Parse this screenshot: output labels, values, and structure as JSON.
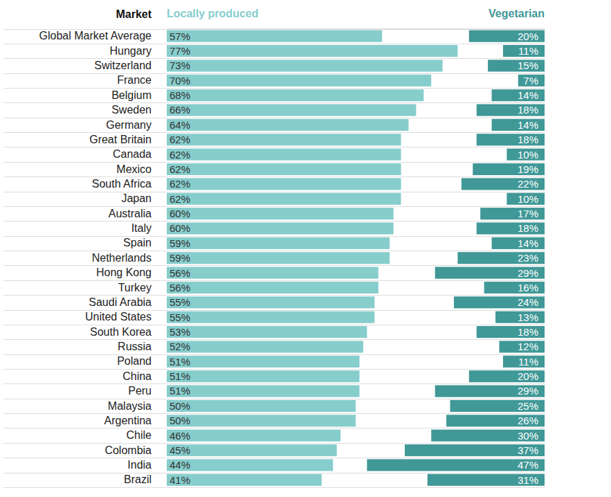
{
  "chart_data": {
    "type": "bar",
    "orientation": "horizontal",
    "data_labels": true,
    "tick_labels": false,
    "y_label": "Market",
    "xlim": [
      0,
      100
    ],
    "categories": [
      "Global Market Average",
      "Hungary",
      "Switzerland",
      "France",
      "Belgium",
      "Sweden",
      "Germany",
      "Great Britain",
      "Canada",
      "Mexico",
      "South Africa",
      "Japan",
      "Australia",
      "Italy",
      "Spain",
      "Netherlands",
      "Hong Kong",
      "Turkey",
      "Saudi Arabia",
      "United States",
      "South Korea",
      "Russia",
      "Poland",
      "China",
      "Peru",
      "Malaysia",
      "Argentina",
      "Chile",
      "Colombia",
      "India",
      "Brazil"
    ],
    "series": [
      {
        "name": "Locally produced",
        "color": "#86cdcc",
        "values": [
          57,
          77,
          73,
          70,
          68,
          66,
          64,
          62,
          62,
          62,
          62,
          62,
          60,
          60,
          59,
          59,
          56,
          56,
          55,
          55,
          53,
          52,
          51,
          51,
          51,
          50,
          50,
          46,
          45,
          44,
          41
        ],
        "value_labels": [
          "57%",
          "77%",
          "73%",
          "70%",
          "68%",
          "66%",
          "64%",
          "62%",
          "62%",
          "62%",
          "62%",
          "62%",
          "60%",
          "60%",
          "59%",
          "59%",
          "56%",
          "56%",
          "55%",
          "55%",
          "53%",
          "52%",
          "51%",
          "51%",
          "51%",
          "50%",
          "50%",
          "46%",
          "45%",
          "44%",
          "41%"
        ]
      },
      {
        "name": "Vegetarian",
        "color": "#409897",
        "values": [
          20,
          11,
          15,
          7,
          14,
          18,
          14,
          18,
          10,
          19,
          22,
          10,
          17,
          18,
          14,
          23,
          29,
          16,
          24,
          13,
          18,
          12,
          11,
          20,
          29,
          25,
          26,
          30,
          37,
          47,
          31
        ],
        "value_labels": [
          "20%",
          "11%",
          "15%",
          "7%",
          "14%",
          "18%",
          "14%",
          "18%",
          "10%",
          "19%",
          "22%",
          "10%",
          "17%",
          "18%",
          "14%",
          "23%",
          "29%",
          "16%",
          "24%",
          "13%",
          "18%",
          "12%",
          "11%",
          "20%",
          "29%",
          "25%",
          "26%",
          "30%",
          "37%",
          "47%",
          "31%"
        ]
      }
    ]
  }
}
